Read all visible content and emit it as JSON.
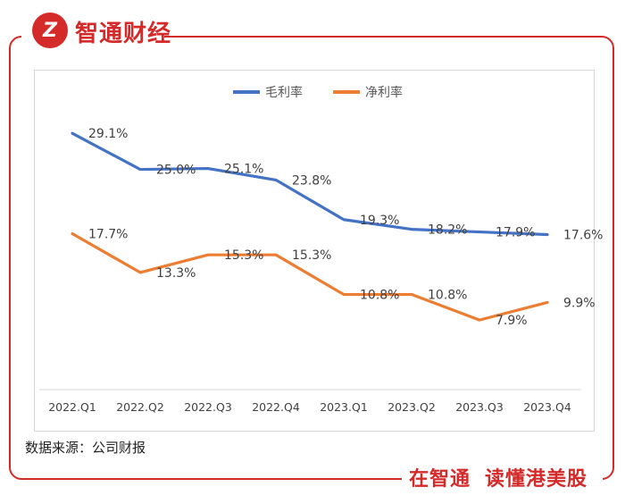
{
  "brand": {
    "logo_glyph": "Z",
    "name": "智通财经",
    "color": "#d42a2a"
  },
  "slogan": {
    "part1": "在智通",
    "part2": "读懂港美股"
  },
  "source_note": "数据来源：公司财报",
  "chart_data": {
    "type": "line",
    "title": "",
    "xlabel": "",
    "ylabel": "",
    "categories": [
      "2022.Q1",
      "2022.Q2",
      "2022.Q3",
      "2022.Q4",
      "2023.Q1",
      "2023.Q2",
      "2023.Q3",
      "2023.Q4"
    ],
    "series": [
      {
        "name": "毛利率",
        "color": "#4472c4",
        "values": [
          29.1,
          25.0,
          25.1,
          23.8,
          19.3,
          18.2,
          17.9,
          17.6
        ],
        "labels": [
          "29.1%",
          "25.0%",
          "25.1%",
          "23.8%",
          "19.3%",
          "18.2%",
          "17.9%",
          "17.6%"
        ]
      },
      {
        "name": "净利率",
        "color": "#ed7d31",
        "values": [
          17.7,
          13.3,
          15.3,
          15.3,
          10.8,
          10.8,
          7.9,
          9.9
        ],
        "labels": [
          "17.7%",
          "13.3%",
          "15.3%",
          "15.3%",
          "10.8%",
          "10.8%",
          "7.9%",
          "9.9%"
        ]
      }
    ],
    "ylim": [
      0,
      35
    ],
    "grid": false,
    "legend": "top-center"
  }
}
